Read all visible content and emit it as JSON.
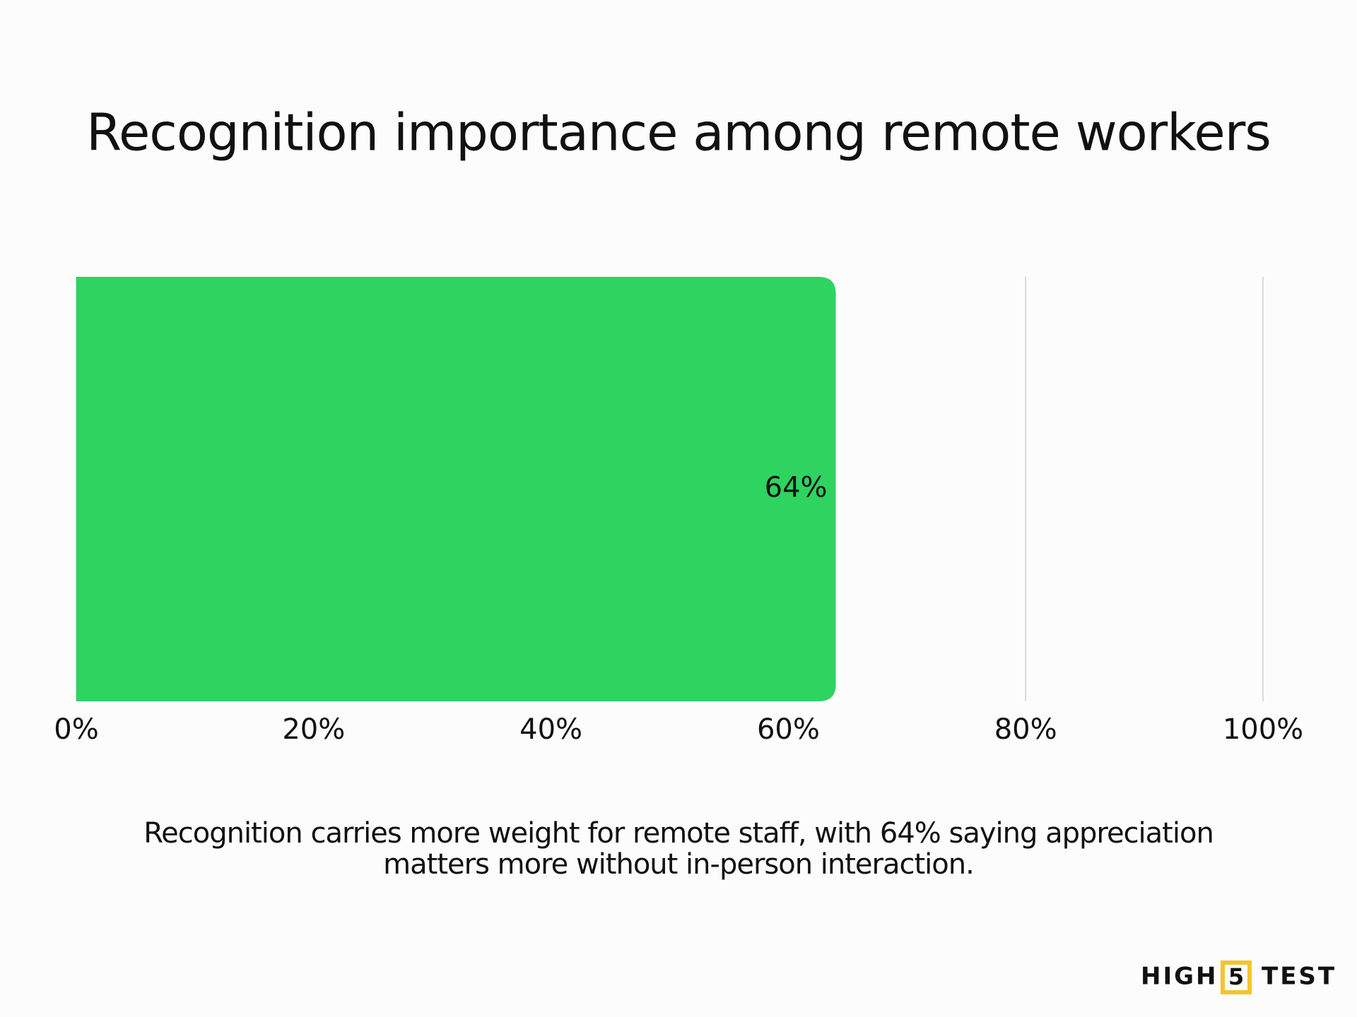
{
  "chart_data": {
    "type": "hbar",
    "title": "Recognition importance among remote workers",
    "values": [
      64
    ],
    "value_labels": [
      "64%"
    ],
    "color": "#2ed45f",
    "xlim": [
      0,
      100
    ],
    "xticks": [
      {
        "value": 0,
        "label": "0%"
      },
      {
        "value": 20,
        "label": "20%"
      },
      {
        "value": 40,
        "label": "40%"
      },
      {
        "value": 60,
        "label": "60%"
      },
      {
        "value": 80,
        "label": "80%"
      },
      {
        "value": 100,
        "label": "100%"
      }
    ],
    "grid": true,
    "caption": "Recognition carries more weight for remote staff, with 64% saying appreciation matters more without in-person interaction."
  },
  "logo": {
    "left": "HIGH",
    "badge": "5",
    "right": "TEST"
  }
}
